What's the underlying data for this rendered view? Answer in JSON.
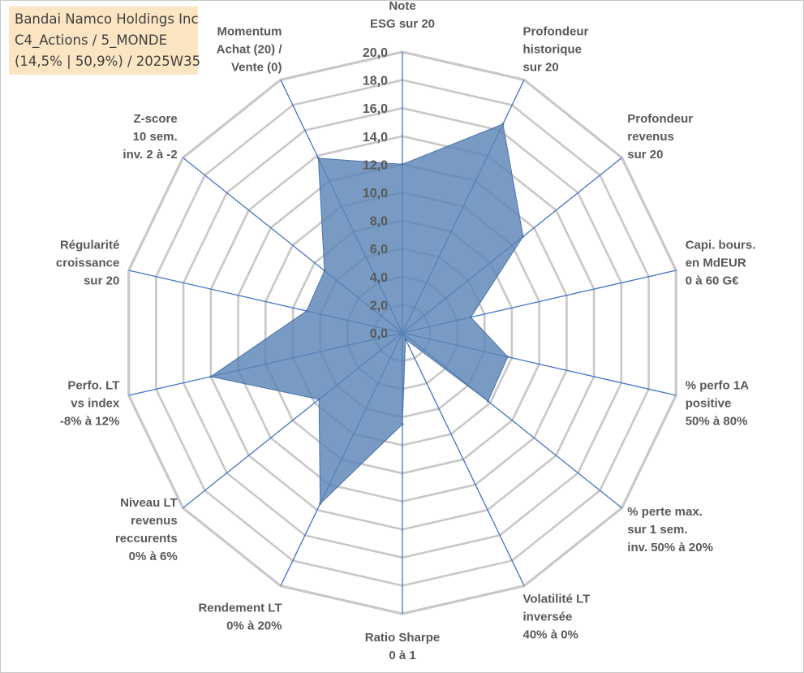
{
  "title_box": {
    "line1": "Bandai Namco Holdings Inc",
    "line2": "C4_Actions / 5_MONDE",
    "line3": "(14,5% | 50,9%) / 2025W35"
  },
  "chart_data": {
    "type": "radar",
    "axes": [
      [
        "Note",
        "ESG sur 20"
      ],
      [
        "Profondeur",
        "historique",
        "sur 20"
      ],
      [
        "Profondeur",
        "revenus",
        "sur 20"
      ],
      [
        "Capi. bours.",
        "en MdEUR",
        "0 à 60 G€"
      ],
      [
        "% perfo 1A",
        "positive",
        "50% à 80%"
      ],
      [
        "% perte max.",
        "sur 1 sem.",
        "inv. 50% à 20%"
      ],
      [
        "Volatilité LT",
        "inversée",
        "40% à 0%"
      ],
      [
        "Ratio Sharpe",
        "0 à 1"
      ],
      [
        "Rendement LT",
        "0% à 20%"
      ],
      [
        "Niveau LT",
        "revenus",
        "reccurents",
        "0% à 6%"
      ],
      [
        "Perfo. LT",
        "vs index",
        "-8% à 12%"
      ],
      [
        "Régularité",
        "croissance",
        "sur 20"
      ],
      [
        "Z-score",
        "10 sem.",
        "inv. 2 à -2"
      ],
      [
        "Momentum",
        "Achat (20) /",
        "Vente (0)"
      ]
    ],
    "values": [
      12.0,
      16.5,
      11.0,
      5.0,
      7.7,
      7.8,
      0.5,
      6.5,
      13.5,
      7.6,
      14.0,
      7.0,
      7.1,
      13.8
    ],
    "rlim": [
      0,
      20
    ],
    "ticks": [
      0,
      2,
      4,
      6,
      8,
      10,
      12,
      14,
      16,
      18,
      20
    ],
    "tick_labels": [
      "0,0",
      "2,0",
      "4,0",
      "6,0",
      "8,0",
      "10,0",
      "12,0",
      "14,0",
      "16,0",
      "18,0",
      "20,0"
    ],
    "colors": {
      "fill": "#5b84b6",
      "stroke": "#4a74aa",
      "spoke": "#4472c4",
      "grid": "#c8c8c8",
      "label": "#595959"
    }
  }
}
